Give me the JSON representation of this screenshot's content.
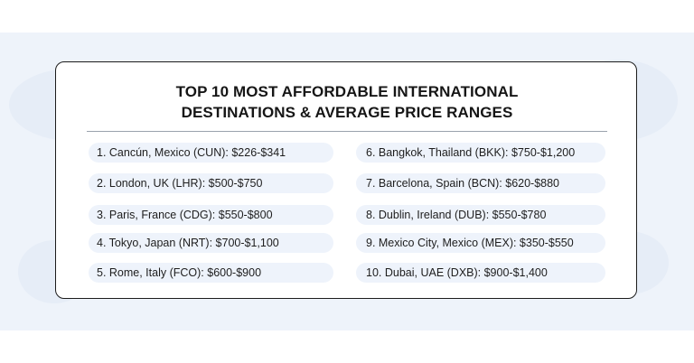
{
  "title": {
    "line1": "TOP 10 MOST AFFORDABLE INTERNATIONAL",
    "line2": "DESTINATIONS & AVERAGE PRICE RANGES"
  },
  "destinations": [
    "1. Cancún, Mexico (CUN): $226-$341",
    "2. London, UK (LHR): $500-$750",
    "3. Paris, France (CDG): $550-$800",
    "4. Tokyo, Japan (NRT): $700-$1,100",
    "5. Rome, Italy (FCO): $600-$900",
    "6. Bangkok, Thailand (BKK): $750-$1,200",
    "7. Barcelona, Spain (BCN): $620-$880",
    "8. Dublin, Ireland (DUB): $550-$780",
    "9. Mexico City, Mexico (MEX): $350-$550",
    "10. Dubai, UAE (DXB): $900-$1,400"
  ],
  "colors": {
    "background_band": "#eef3fa",
    "pill": "#eef3fb",
    "border": "#1c1c1c",
    "text": "#161616"
  }
}
